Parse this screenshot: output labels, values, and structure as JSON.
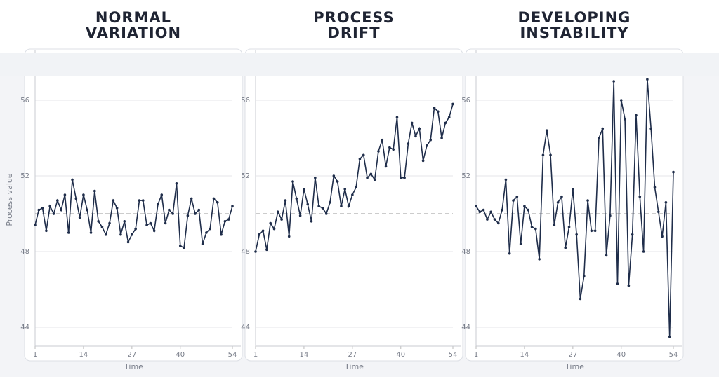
{
  "chart_data": [
    {
      "type": "line",
      "title": "NORMAL VARIATION",
      "x_label": "Time",
      "y_label": "Process value",
      "x": [
        1,
        2,
        3,
        4,
        5,
        6,
        7,
        8,
        9,
        10,
        11,
        12,
        13,
        14,
        15,
        16,
        17,
        18,
        19,
        20,
        21,
        22,
        23,
        24,
        25,
        26,
        27,
        28,
        29,
        30,
        31,
        32,
        33,
        34,
        35,
        36,
        37,
        38,
        39,
        40,
        41,
        42,
        43,
        44,
        45,
        46,
        47,
        48,
        49,
        50,
        51,
        52,
        53,
        54
      ],
      "values": [
        49.4,
        50.2,
        50.3,
        49.1,
        50.4,
        50.0,
        50.7,
        50.2,
        51.0,
        49.0,
        51.8,
        50.8,
        49.8,
        51.0,
        50.2,
        49.0,
        51.2,
        49.6,
        49.3,
        48.9,
        49.5,
        50.7,
        50.3,
        48.9,
        49.6,
        48.5,
        48.9,
        49.2,
        50.7,
        50.7,
        49.4,
        49.5,
        49.1,
        50.5,
        51.0,
        49.5,
        50.2,
        50.0,
        51.6,
        48.3,
        48.2,
        49.9,
        50.8,
        50.0,
        50.2,
        48.4,
        49.0,
        49.2,
        50.8,
        50.6,
        48.9,
        49.6,
        49.7,
        50.4
      ],
      "color": "#1f2d4a",
      "reference": 50,
      "xlim": [
        1,
        54
      ],
      "xticks": [
        1,
        14,
        27,
        40,
        54
      ],
      "ylim": [
        43,
        57.5
      ],
      "yticks": [
        44,
        48,
        52,
        56
      ],
      "grid": true
    },
    {
      "type": "line",
      "title": "PROCESS DRIFT",
      "x_label": "Time",
      "x": [
        1,
        2,
        3,
        4,
        5,
        6,
        7,
        8,
        9,
        10,
        11,
        12,
        13,
        14,
        15,
        16,
        17,
        18,
        19,
        20,
        21,
        22,
        23,
        24,
        25,
        26,
        27,
        28,
        29,
        30,
        31,
        32,
        33,
        34,
        35,
        36,
        37,
        38,
        39,
        40,
        41,
        42,
        43,
        44,
        45,
        46,
        47,
        48,
        49,
        50,
        51,
        52,
        53,
        54
      ],
      "values": [
        48.0,
        48.9,
        49.1,
        48.1,
        49.5,
        49.2,
        50.1,
        49.7,
        50.7,
        48.8,
        51.7,
        50.8,
        49.9,
        51.3,
        50.5,
        49.6,
        51.9,
        50.4,
        50.3,
        50.0,
        50.6,
        52.0,
        51.7,
        50.4,
        51.3,
        50.4,
        51.0,
        51.4,
        52.9,
        53.1,
        51.9,
        52.1,
        51.8,
        53.3,
        53.9,
        52.5,
        53.5,
        53.4,
        55.1,
        51.9,
        51.9,
        53.7,
        54.8,
        54.1,
        54.5,
        52.8,
        53.6,
        53.9,
        55.6,
        55.4,
        54.0,
        54.8,
        55.1,
        55.8
      ],
      "color": "#1f2d4a",
      "reference": 50,
      "xlim": [
        1,
        54
      ],
      "xticks": [
        1,
        14,
        27,
        40,
        54
      ],
      "ylim": [
        43,
        57.5
      ],
      "yticks": [
        44,
        48,
        52,
        56
      ],
      "grid": true
    },
    {
      "type": "line",
      "title": "DEVELOPING INSTABILITY",
      "x_label": "Time",
      "x": [
        1,
        2,
        3,
        4,
        5,
        6,
        7,
        8,
        9,
        10,
        11,
        12,
        13,
        14,
        15,
        16,
        17,
        18,
        19,
        20,
        21,
        22,
        23,
        24,
        25,
        26,
        27,
        28,
        29,
        30,
        31,
        32,
        33,
        34,
        35,
        36,
        37,
        38,
        39,
        40,
        41,
        42,
        43,
        44,
        45,
        46,
        47,
        48,
        49,
        50,
        51,
        52,
        53,
        54
      ],
      "values": [
        50.4,
        50.1,
        50.2,
        49.7,
        50.1,
        49.7,
        49.5,
        50.2,
        51.8,
        47.9,
        50.7,
        50.9,
        48.4,
        50.4,
        50.2,
        49.3,
        49.2,
        47.6,
        53.1,
        54.4,
        53.1,
        49.4,
        50.6,
        50.9,
        48.2,
        49.3,
        51.3,
        48.9,
        45.5,
        46.7,
        50.7,
        49.1,
        49.1,
        54.0,
        54.5,
        47.8,
        49.9,
        57.0,
        46.3,
        56.0,
        55.0,
        46.2,
        48.9,
        55.2,
        50.9,
        48.0,
        57.1,
        54.5,
        51.4,
        50.1,
        48.8,
        50.6,
        43.5,
        52.2
      ],
      "color": "#1f2d4a",
      "reference": 50,
      "xlim": [
        1,
        54
      ],
      "xticks": [
        1,
        14,
        27,
        40,
        54
      ],
      "ylim": [
        43,
        57.5
      ],
      "yticks": [
        44,
        48,
        52,
        56
      ],
      "grid": true
    }
  ]
}
